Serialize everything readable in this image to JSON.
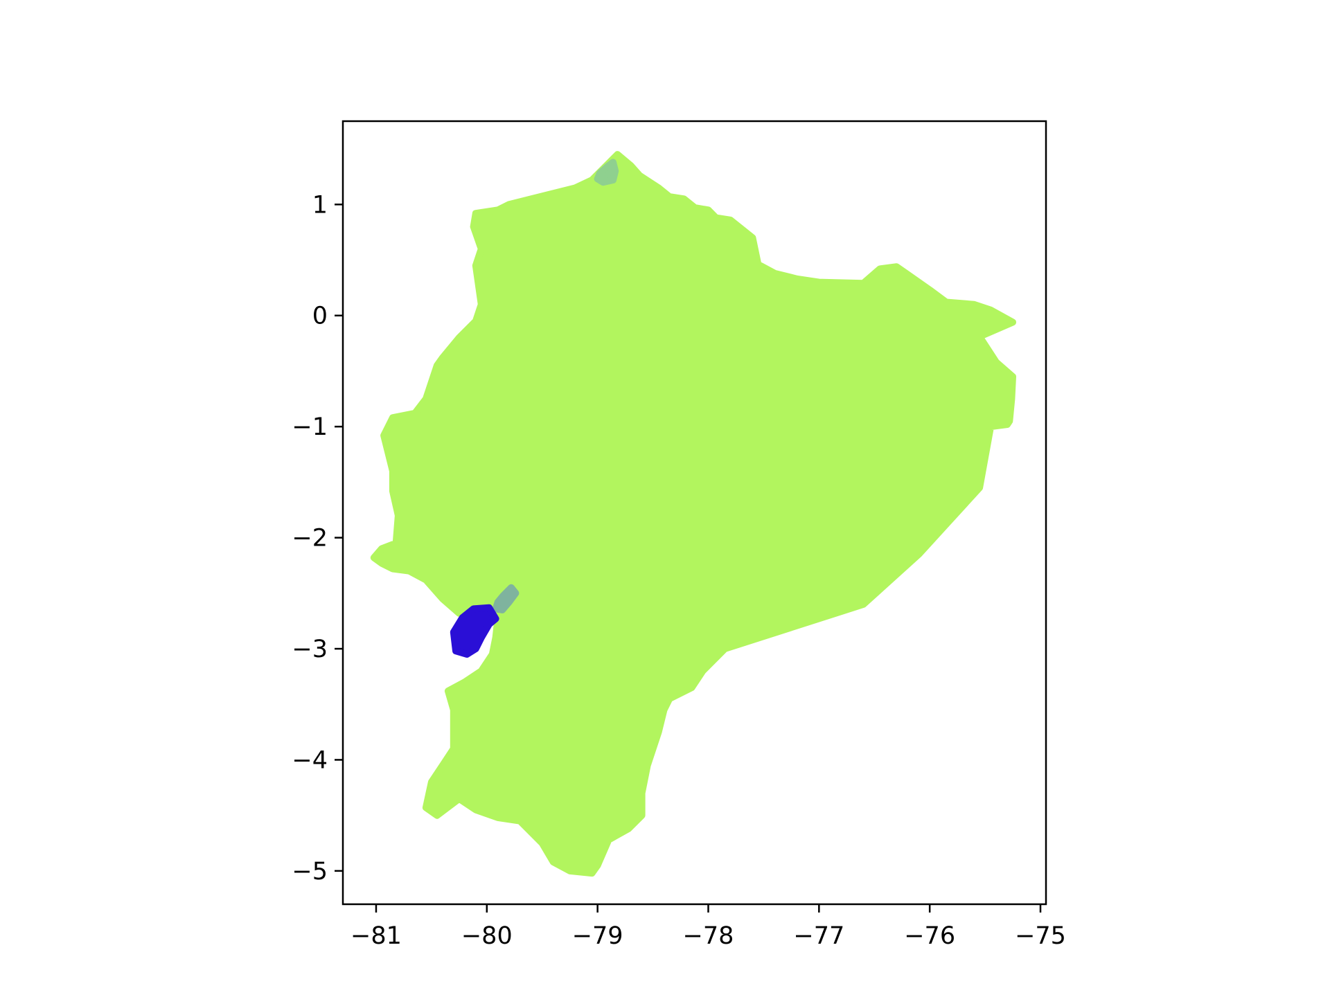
{
  "chart_data": {
    "type": "map",
    "title": "",
    "xlabel": "",
    "ylabel": "",
    "xlim": [
      -81.3,
      -74.95
    ],
    "ylim": [
      -5.3,
      1.75
    ],
    "x_ticks": [
      -81,
      -80,
      -79,
      -78,
      -77,
      -76,
      -75
    ],
    "y_ticks": [
      1,
      0,
      -1,
      -2,
      -3,
      -4,
      -5
    ],
    "x_tick_labels": [
      "−81",
      "−80",
      "−79",
      "−78",
      "−77",
      "−76",
      "−75"
    ],
    "y_tick_labels": [
      "1",
      "0",
      "−1",
      "−2",
      "−3",
      "−4",
      "−5"
    ],
    "grid": false,
    "legend": "none",
    "regions": [
      {
        "id": "mainland",
        "color": "#b2f55e",
        "polygon": [
          [
            -78.82,
            1.45
          ],
          [
            -78.7,
            1.35
          ],
          [
            -78.62,
            1.26
          ],
          [
            -78.45,
            1.15
          ],
          [
            -78.35,
            1.07
          ],
          [
            -78.22,
            1.05
          ],
          [
            -78.12,
            0.97
          ],
          [
            -78.0,
            0.95
          ],
          [
            -77.93,
            0.88
          ],
          [
            -77.8,
            0.86
          ],
          [
            -77.6,
            0.7
          ],
          [
            -77.55,
            0.46
          ],
          [
            -77.4,
            0.38
          ],
          [
            -77.2,
            0.33
          ],
          [
            -77.0,
            0.3
          ],
          [
            -76.6,
            0.29
          ],
          [
            -76.45,
            0.42
          ],
          [
            -76.3,
            0.44
          ],
          [
            -76.2,
            0.37
          ],
          [
            -76.1,
            0.3
          ],
          [
            -76.0,
            0.23
          ],
          [
            -75.85,
            0.12
          ],
          [
            -75.6,
            0.1
          ],
          [
            -75.45,
            0.05
          ],
          [
            -75.25,
            -0.06
          ],
          [
            -75.55,
            -0.19
          ],
          [
            -75.4,
            -0.42
          ],
          [
            -75.25,
            -0.55
          ],
          [
            -75.26,
            -0.75
          ],
          [
            -75.28,
            -0.95
          ],
          [
            -75.3,
            -0.98
          ],
          [
            -75.45,
            -1.0
          ],
          [
            -75.55,
            -1.55
          ],
          [
            -76.1,
            -2.15
          ],
          [
            -76.6,
            -2.6
          ],
          [
            -77.85,
            -3.0
          ],
          [
            -78.05,
            -3.2
          ],
          [
            -78.15,
            -3.35
          ],
          [
            -78.35,
            -3.45
          ],
          [
            -78.4,
            -3.55
          ],
          [
            -78.45,
            -3.75
          ],
          [
            -78.55,
            -4.05
          ],
          [
            -78.6,
            -4.3
          ],
          [
            -78.6,
            -4.5
          ],
          [
            -78.72,
            -4.62
          ],
          [
            -78.9,
            -4.72
          ],
          [
            -79.0,
            -4.95
          ],
          [
            -79.05,
            -5.02
          ],
          [
            -79.25,
            -5.0
          ],
          [
            -79.4,
            -4.92
          ],
          [
            -79.5,
            -4.75
          ],
          [
            -79.7,
            -4.55
          ],
          [
            -79.9,
            -4.52
          ],
          [
            -80.1,
            -4.45
          ],
          [
            -80.25,
            -4.35
          ],
          [
            -80.45,
            -4.5
          ],
          [
            -80.55,
            -4.43
          ],
          [
            -80.5,
            -4.2
          ],
          [
            -80.4,
            -4.05
          ],
          [
            -80.3,
            -3.9
          ],
          [
            -80.3,
            -3.55
          ],
          [
            -80.35,
            -3.38
          ],
          [
            -80.2,
            -3.3
          ],
          [
            -80.05,
            -3.2
          ],
          [
            -79.95,
            -3.05
          ],
          [
            -79.92,
            -2.9
          ],
          [
            -79.9,
            -2.72
          ],
          [
            -79.98,
            -2.62
          ],
          [
            -80.1,
            -2.6
          ],
          [
            -80.25,
            -2.68
          ],
          [
            -80.4,
            -2.55
          ],
          [
            -80.55,
            -2.38
          ],
          [
            -80.7,
            -2.3
          ],
          [
            -80.85,
            -2.28
          ],
          [
            -80.95,
            -2.23
          ],
          [
            -81.02,
            -2.18
          ],
          [
            -80.95,
            -2.1
          ],
          [
            -80.82,
            -2.05
          ],
          [
            -80.8,
            -1.8
          ],
          [
            -80.85,
            -1.58
          ],
          [
            -80.85,
            -1.4
          ],
          [
            -80.93,
            -1.08
          ],
          [
            -80.85,
            -0.92
          ],
          [
            -80.65,
            -0.88
          ],
          [
            -80.55,
            -0.75
          ],
          [
            -80.45,
            -0.45
          ],
          [
            -80.4,
            -0.38
          ],
          [
            -80.25,
            -0.2
          ],
          [
            -80.1,
            -0.05
          ],
          [
            -80.05,
            0.1
          ],
          [
            -80.1,
            0.45
          ],
          [
            -80.05,
            0.6
          ],
          [
            -80.12,
            0.8
          ],
          [
            -80.1,
            0.92
          ],
          [
            -79.9,
            0.95
          ],
          [
            -79.8,
            1.0
          ],
          [
            -79.6,
            1.05
          ],
          [
            -79.4,
            1.1
          ],
          [
            -79.2,
            1.15
          ],
          [
            -79.05,
            1.22
          ]
        ]
      },
      {
        "id": "north-spot",
        "color": "#8fd08f",
        "polygon": [
          [
            -78.98,
            1.28
          ],
          [
            -78.9,
            1.35
          ],
          [
            -78.86,
            1.38
          ],
          [
            -78.84,
            1.3
          ],
          [
            -78.86,
            1.22
          ],
          [
            -78.95,
            1.2
          ],
          [
            -79.0,
            1.23
          ]
        ]
      },
      {
        "id": "gulf-strip",
        "color": "#7fb39e",
        "polygon": [
          [
            -79.85,
            -2.52
          ],
          [
            -79.78,
            -2.45
          ],
          [
            -79.74,
            -2.5
          ],
          [
            -79.8,
            -2.58
          ],
          [
            -79.86,
            -2.65
          ],
          [
            -79.92,
            -2.64
          ],
          [
            -79.9,
            -2.58
          ]
        ]
      },
      {
        "id": "puna-island",
        "color": "#2a0fd6",
        "polygon": [
          [
            -80.22,
            -2.72
          ],
          [
            -80.12,
            -2.64
          ],
          [
            -79.98,
            -2.63
          ],
          [
            -79.92,
            -2.73
          ],
          [
            -79.98,
            -2.78
          ],
          [
            -80.05,
            -2.9
          ],
          [
            -80.1,
            -3.0
          ],
          [
            -80.18,
            -3.05
          ],
          [
            -80.28,
            -3.02
          ],
          [
            -80.3,
            -2.85
          ]
        ]
      }
    ]
  }
}
